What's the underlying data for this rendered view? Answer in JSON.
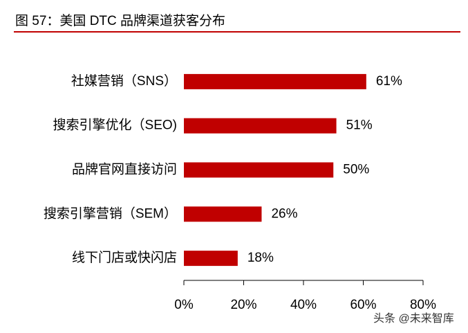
{
  "chart_data": {
    "type": "bar",
    "orientation": "horizontal",
    "title": "图 57：美国 DTC 品牌渠道获客分布",
    "categories": [
      "社媒营销（SNS）",
      "搜索引擎优化（SEO)",
      "品牌官网直接访问",
      "搜索引擎营销（SEM）",
      "线下门店或快闪店"
    ],
    "values": [
      61,
      51,
      50,
      26,
      18
    ],
    "value_labels": [
      "61%",
      "51%",
      "50%",
      "26%",
      "18%"
    ],
    "color": "#c00000",
    "xlim": [
      0,
      80
    ],
    "xticks": [
      {
        "value": 0,
        "label": "0%"
      },
      {
        "value": 20,
        "label": "20%"
      },
      {
        "value": 40,
        "label": "40%"
      },
      {
        "value": 60,
        "label": "60%"
      },
      {
        "value": 80,
        "label": "80%"
      }
    ],
    "watermark": "头条 @未来智库"
  }
}
